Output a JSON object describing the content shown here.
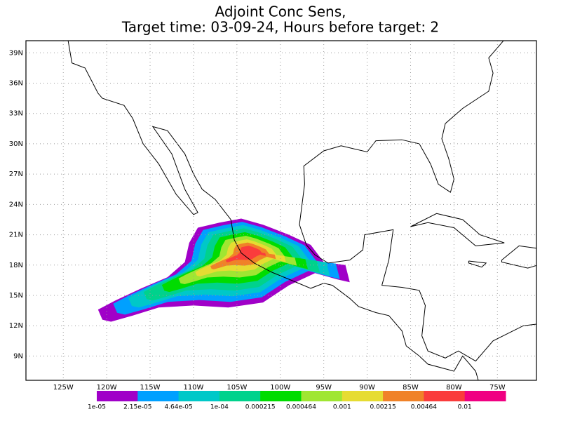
{
  "title": [
    "Adjoint Conc Sens,",
    "Target time: 03-09-24, Hours before target: 2"
  ],
  "map": {
    "xlim": [
      -129.3,
      -70.5
    ],
    "ylim": [
      6.6,
      40.2
    ],
    "xticks": [
      {
        "value": -125,
        "label": "125W"
      },
      {
        "value": -120,
        "label": "120W"
      },
      {
        "value": -115,
        "label": "115W"
      },
      {
        "value": -110,
        "label": "110W"
      },
      {
        "value": -105,
        "label": "105W"
      },
      {
        "value": -100,
        "label": "100W"
      },
      {
        "value": -95,
        "label": "95W"
      },
      {
        "value": -90,
        "label": "90W"
      },
      {
        "value": -85,
        "label": "85W"
      },
      {
        "value": -80,
        "label": "80W"
      },
      {
        "value": -75,
        "label": "75W"
      }
    ],
    "yticks": [
      {
        "value": 9,
        "label": "9N"
      },
      {
        "value": 12,
        "label": "12N"
      },
      {
        "value": 15,
        "label": "15N"
      },
      {
        "value": 18,
        "label": "18N"
      },
      {
        "value": 21,
        "label": "21N"
      },
      {
        "value": 24,
        "label": "24N"
      },
      {
        "value": 27,
        "label": "27N"
      },
      {
        "value": 30,
        "label": "30N"
      },
      {
        "value": 33,
        "label": "33N"
      },
      {
        "value": 36,
        "label": "36N"
      },
      {
        "value": 39,
        "label": "39N"
      }
    ],
    "grid": true
  },
  "colorbar": {
    "levels": [
      {
        "value": 1e-05,
        "label": "1e-05"
      },
      {
        "value": 2.15e-05,
        "label": "2.15e-05"
      },
      {
        "value": 4.64e-05,
        "label": "4.64e-05"
      },
      {
        "value": 0.0001,
        "label": "1e-04"
      },
      0.000215,
      0.000464,
      0.001,
      0.00215,
      0.00464,
      0.01
    ],
    "colors": [
      "#a000c8",
      "#00a0ff",
      "#00c8c8",
      "#00d28c",
      "#00dc00",
      "#a0e632",
      "#e6dc32",
      "#f08228",
      "#fa3c3c",
      "#f00082"
    ]
  }
}
